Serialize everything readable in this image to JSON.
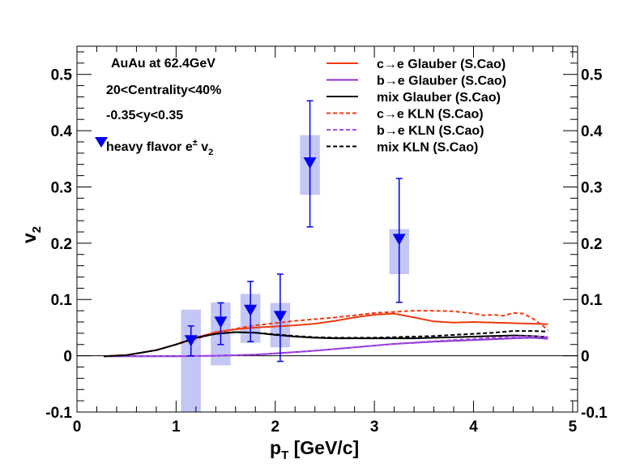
{
  "chart_data": {
    "type": "line",
    "title": "",
    "xlabel": "p",
    "xlabel_sub": "T",
    "xlabel_unit": " [GeV/c]",
    "ylabel": "v",
    "ylabel_sub": "2",
    "xlim": [
      0,
      5.05
    ],
    "ylim": [
      -0.1,
      0.55
    ],
    "x_ticks": [
      0,
      1,
      2,
      3,
      4,
      5
    ],
    "x_tick_labels": [
      "0",
      "1",
      "2",
      "3",
      "4",
      "5"
    ],
    "y_ticks": [
      -0.1,
      0,
      0.1,
      0.2,
      0.3,
      0.4,
      0.5
    ],
    "y_tick_labels": [
      "-0.1",
      "0",
      "0.1",
      "0.2",
      "0.3",
      "0.4",
      "0.5"
    ],
    "grid": false,
    "legend_position": "top-right",
    "annotations": [
      "AuAu at 62.4GeV",
      "20<Centrality<40%",
      "-0.35<y<0.35"
    ],
    "data_legend": {
      "label": "heavy flavor e",
      "sup": "±",
      "tail": " v",
      "sub": "2"
    },
    "measurement": {
      "name": "heavy flavor e± v2",
      "color": "#0000ee",
      "box_color": "#c4c6f5",
      "points": [
        {
          "x": 1.15,
          "y": 0.025,
          "stat_low": 0.0,
          "stat_high": 0.053,
          "sys_low": -0.1,
          "sys_high": 0.082,
          "box_w": 0.2
        },
        {
          "x": 1.45,
          "y": 0.058,
          "stat_low": 0.02,
          "stat_high": 0.094,
          "sys_low": -0.017,
          "sys_high": 0.095,
          "box_w": 0.2
        },
        {
          "x": 1.75,
          "y": 0.079,
          "stat_low": 0.025,
          "stat_high": 0.132,
          "sys_low": 0.023,
          "sys_high": 0.11,
          "box_w": 0.2
        },
        {
          "x": 2.05,
          "y": 0.068,
          "stat_low": -0.01,
          "stat_high": 0.145,
          "sys_low": 0.015,
          "sys_high": 0.094,
          "box_w": 0.2
        },
        {
          "x": 2.35,
          "y": 0.341,
          "stat_low": 0.229,
          "stat_high": 0.453,
          "sys_low": 0.286,
          "sys_high": 0.392,
          "box_w": 0.2
        },
        {
          "x": 3.25,
          "y": 0.205,
          "stat_low": 0.095,
          "stat_high": 0.315,
          "sys_low": 0.145,
          "sys_high": 0.225,
          "box_w": 0.2
        }
      ]
    },
    "series": [
      {
        "name": "c→e Glauber (S.Cao)",
        "color": "#f03a10",
        "dash": "solid",
        "x": [
          0.27,
          0.5,
          0.8,
          1.0,
          1.2,
          1.4,
          1.6,
          1.8,
          2.0,
          2.2,
          2.4,
          2.6,
          2.8,
          3.0,
          3.2,
          3.4,
          3.6,
          3.8,
          4.0,
          4.2,
          4.4,
          4.6,
          4.75
        ],
        "y": [
          -0.001,
          0.001,
          0.01,
          0.02,
          0.032,
          0.042,
          0.047,
          0.05,
          0.052,
          0.054,
          0.057,
          0.062,
          0.068,
          0.073,
          0.075,
          0.068,
          0.061,
          0.059,
          0.06,
          0.059,
          0.058,
          0.057,
          0.056
        ]
      },
      {
        "name": "b→e Glauber (S.Cao)",
        "color": "#8b2fd0",
        "dash": "solid",
        "x": [
          0.27,
          0.6,
          1.0,
          1.4,
          1.6,
          1.8,
          2.0,
          2.4,
          2.8,
          3.2,
          3.6,
          4.0,
          4.4,
          4.6,
          4.75
        ],
        "y": [
          -0.001,
          -0.001,
          -0.001,
          0.0,
          0.001,
          0.002,
          0.004,
          0.009,
          0.015,
          0.021,
          0.025,
          0.028,
          0.031,
          0.032,
          0.03
        ]
      },
      {
        "name": "mix Glauber (S.Cao)",
        "color": "#000000",
        "dash": "solid",
        "x": [
          0.27,
          0.5,
          0.8,
          1.0,
          1.2,
          1.4,
          1.6,
          1.8,
          2.0,
          2.2,
          2.4,
          2.6,
          2.8,
          3.0,
          3.2,
          3.4,
          3.6,
          3.8,
          4.0,
          4.2,
          4.4,
          4.6,
          4.75
        ],
        "y": [
          -0.001,
          0.001,
          0.01,
          0.02,
          0.032,
          0.039,
          0.042,
          0.041,
          0.037,
          0.034,
          0.032,
          0.031,
          0.031,
          0.031,
          0.031,
          0.031,
          0.032,
          0.033,
          0.034,
          0.035,
          0.036,
          0.035,
          0.033
        ]
      },
      {
        "name": "c→e KLN (S.Cao)",
        "color": "#f03a10",
        "dash": "dashed",
        "x": [
          0.27,
          0.5,
          0.8,
          1.0,
          1.2,
          1.4,
          1.6,
          1.8,
          2.0,
          2.2,
          2.4,
          2.6,
          2.8,
          3.0,
          3.2,
          3.4,
          3.6,
          3.8,
          4.0,
          4.1,
          4.2,
          4.3,
          4.4,
          4.5,
          4.6,
          4.7,
          4.75
        ],
        "y": [
          -0.001,
          0.001,
          0.01,
          0.02,
          0.03,
          0.04,
          0.048,
          0.054,
          0.058,
          0.062,
          0.065,
          0.068,
          0.072,
          0.076,
          0.078,
          0.08,
          0.08,
          0.079,
          0.075,
          0.072,
          0.073,
          0.071,
          0.076,
          0.075,
          0.066,
          0.053,
          0.046
        ]
      },
      {
        "name": "b→e KLN (S.Cao)",
        "color": "#a64fe8",
        "dash": "dashed",
        "x": [
          0.27,
          0.6,
          1.0,
          1.4,
          1.6,
          1.8,
          2.0,
          2.4,
          2.8,
          3.2,
          3.6,
          4.0,
          4.4,
          4.6,
          4.75
        ],
        "y": [
          -0.001,
          -0.001,
          -0.001,
          0.0,
          0.001,
          0.002,
          0.004,
          0.009,
          0.015,
          0.021,
          0.026,
          0.03,
          0.034,
          0.035,
          0.033
        ]
      },
      {
        "name": "mix KLN (S.Cao)",
        "color": "#000000",
        "dash": "dashed",
        "x": [
          0.27,
          0.5,
          0.8,
          1.0,
          1.2,
          1.4,
          1.6,
          1.8,
          2.0,
          2.2,
          2.4,
          2.6,
          2.8,
          3.0,
          3.2,
          3.4,
          3.6,
          3.8,
          4.0,
          4.2,
          4.4,
          4.6,
          4.75
        ],
        "y": [
          -0.001,
          0.001,
          0.01,
          0.02,
          0.032,
          0.039,
          0.042,
          0.041,
          0.038,
          0.035,
          0.033,
          0.032,
          0.032,
          0.032,
          0.033,
          0.034,
          0.035,
          0.037,
          0.039,
          0.041,
          0.044,
          0.044,
          0.043
        ]
      }
    ]
  }
}
